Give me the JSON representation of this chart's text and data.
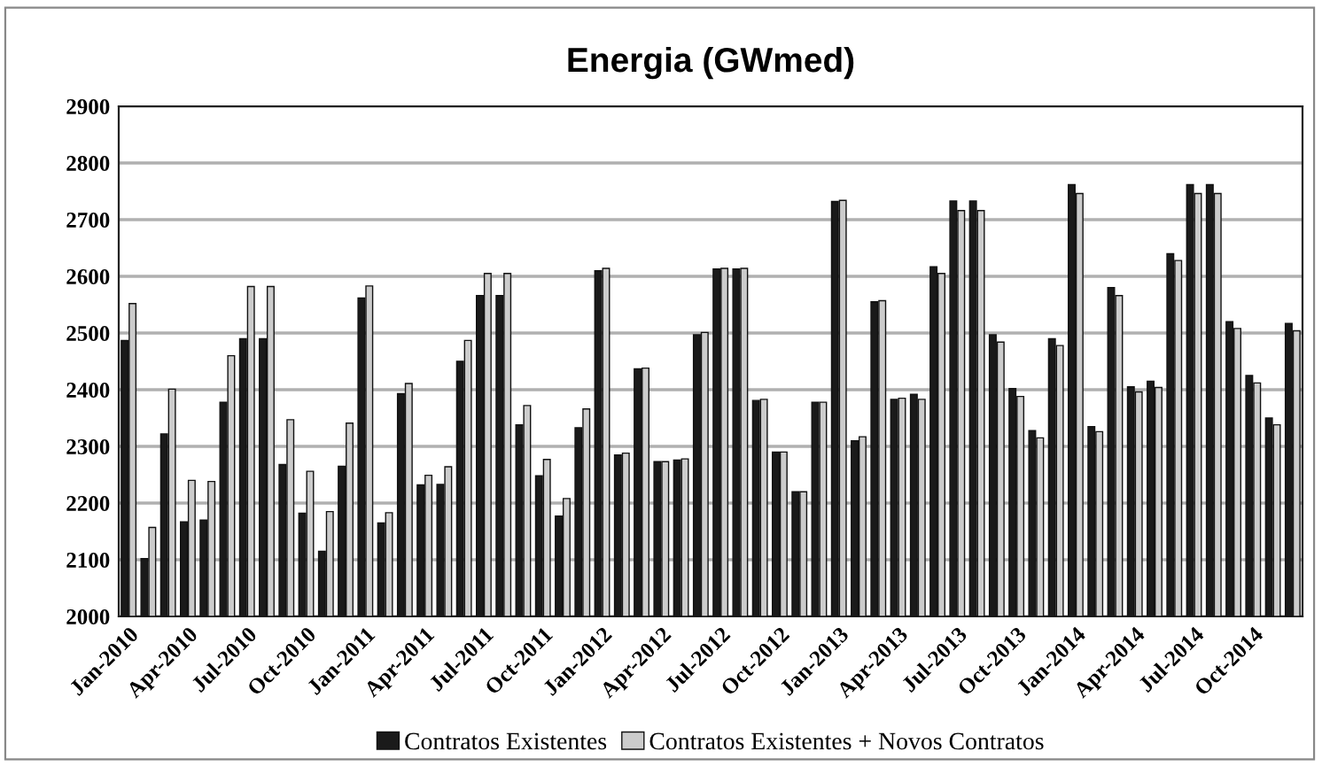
{
  "chart_data": {
    "type": "bar",
    "title": "Energia (GWmed)",
    "categories": [
      "Jan-2010",
      null,
      null,
      "Apr-2010",
      null,
      null,
      "Jul-2010",
      null,
      null,
      "Oct-2010",
      null,
      null,
      "Jan-2011",
      null,
      null,
      "Apr-2011",
      null,
      null,
      "Jul-2011",
      null,
      null,
      "Oct-2011",
      null,
      null,
      "Jan-2012",
      null,
      null,
      "Apr-2012",
      null,
      null,
      "Jul-2012",
      null,
      null,
      "Oct-2012",
      null,
      null,
      "Jan-2013",
      null,
      null,
      "Apr-2013",
      null,
      null,
      "Jul-2013",
      null,
      null,
      "Oct-2013",
      null,
      null,
      "Jan-2014",
      null,
      null,
      "Apr-2014",
      null,
      null,
      "Jul-2014",
      null,
      null,
      "Oct-2014",
      null,
      null
    ],
    "series": [
      {
        "name": "Contratos Existentes",
        "color": "#1a1a1a",
        "values": [
          2487,
          2102,
          2322,
          2167,
          2170,
          2378,
          2490,
          2490,
          2268,
          2182,
          2115,
          2265,
          2562,
          2165,
          2393,
          2232,
          2233,
          2450,
          2566,
          2566,
          2338,
          2248,
          2177,
          2333,
          2610,
          2285,
          2437,
          2273,
          2276,
          2497,
          2613,
          2613,
          2381,
          2290,
          2220,
          2378,
          2732,
          2310,
          2555,
          2383,
          2392,
          2617,
          2733,
          2733,
          2497,
          2402,
          2328,
          2490,
          2762,
          2335,
          2580,
          2405,
          2415,
          2640,
          2762,
          2762,
          2520,
          2425,
          2350,
          2517
        ]
      },
      {
        "name": "Contratos Existentes + Novos Contratos",
        "color": "#cccccc",
        "values": [
          2552,
          2157,
          2401,
          2240,
          2238,
          2460,
          2582,
          2582,
          2347,
          2256,
          2185,
          2341,
          2583,
          2183,
          2411,
          2249,
          2264,
          2487,
          2605,
          2605,
          2372,
          2277,
          2208,
          2366,
          2614,
          2288,
          2438,
          2273,
          2278,
          2501,
          2614,
          2614,
          2383,
          2290,
          2220,
          2378,
          2734,
          2317,
          2557,
          2385,
          2383,
          2605,
          2716,
          2716,
          2484,
          2388,
          2315,
          2478,
          2746,
          2326,
          2566,
          2396,
          2404,
          2628,
          2746,
          2746,
          2508,
          2412,
          2338,
          2504
        ]
      }
    ],
    "ylim": [
      2000,
      2900
    ],
    "yticks": [
      2000,
      2100,
      2200,
      2300,
      2400,
      2500,
      2600,
      2700,
      2800,
      2900
    ],
    "grid": "y",
    "legend": "bottom"
  }
}
